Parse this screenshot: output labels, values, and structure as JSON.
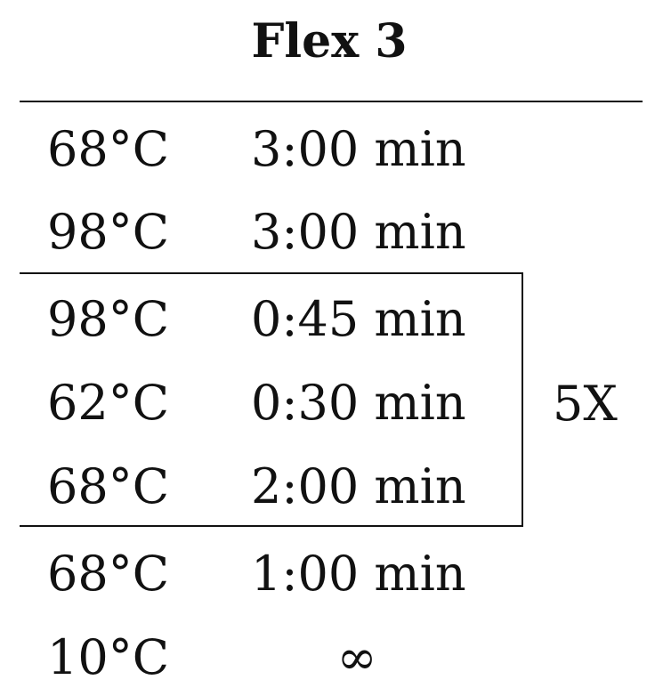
{
  "title": "Flex 3",
  "steps": [
    {
      "temp": "68°C",
      "time": "3:00 min"
    },
    {
      "temp": "98°C",
      "time": "3:00 min"
    },
    {
      "temp": "98°C",
      "time": "0:45 min"
    },
    {
      "temp": "62°C",
      "time": "0:30 min"
    },
    {
      "temp": "68°C",
      "time": "2:00 min"
    },
    {
      "temp": "68°C",
      "time": "1:00 min"
    },
    {
      "temp": "10°C",
      "time": "∞"
    }
  ],
  "cycle": {
    "label": "5X"
  }
}
